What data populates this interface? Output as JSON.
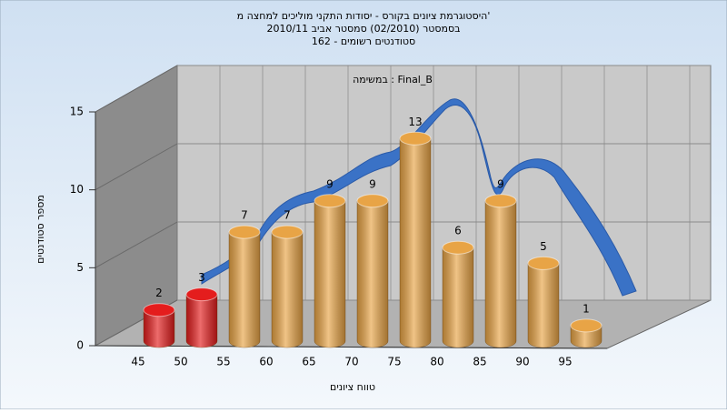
{
  "chart_data": {
    "type": "bar",
    "title": "היסטוגרמת ציונים בקורס - יסודות התקני מוליכים למחצה מ'",
    "subtitle": [
      "בסמסטר (02/2010) סמסטר אביב 2010/11",
      "סטודנטים רשומים - 162"
    ],
    "annotation": "במשימה : Final_B",
    "x_label": "טווח ציונים",
    "y_label": "מספר סטודנטים",
    "categories": [
      "45",
      "50",
      "55",
      "60",
      "65",
      "70",
      "75",
      "80",
      "85",
      "90",
      "95"
    ],
    "values": [
      2,
      3,
      7,
      7,
      9,
      9,
      13,
      6,
      9,
      5,
      1
    ],
    "colors": [
      "#e41d1d",
      "#e41d1d",
      "#e8a446",
      "#e8a446",
      "#e8a446",
      "#e8a446",
      "#e8a446",
      "#e8a446",
      "#e8a446",
      "#e8a446",
      "#e8a446"
    ],
    "ylim": [
      0,
      15
    ],
    "yticks": [
      0,
      5,
      10,
      15
    ],
    "grid": true
  }
}
